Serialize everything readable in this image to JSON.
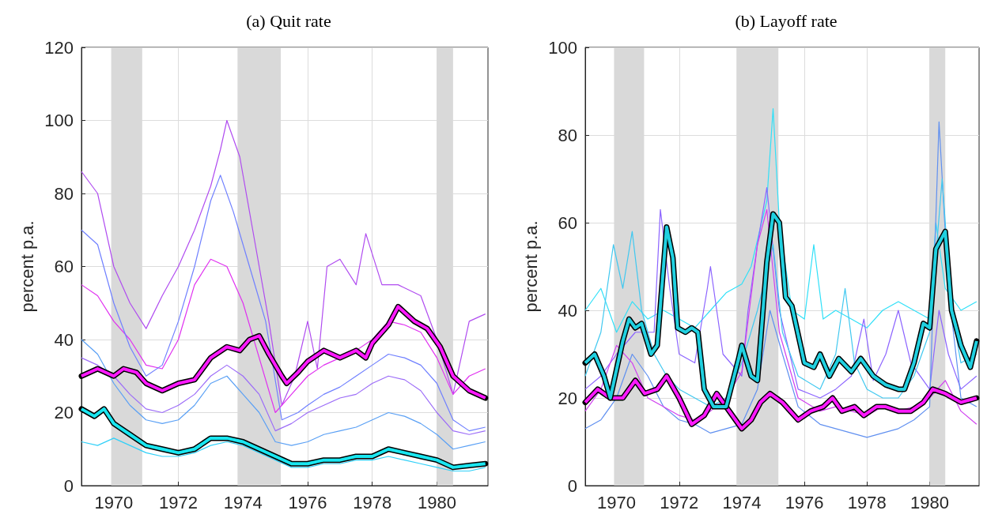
{
  "chart_data": [
    {
      "type": "line",
      "title": "(a) Quit rate",
      "ylabel": "percent p.a.",
      "xlim": [
        1969,
        1981.58
      ],
      "xticks": [
        1970,
        1972,
        1974,
        1976,
        1978,
        1980
      ],
      "ylim": [
        0,
        120
      ],
      "yticks": [
        0,
        20,
        40,
        60,
        80,
        100,
        120
      ],
      "grid": true,
      "marker": "none",
      "bands": [
        {
          "axis": "x",
          "from": 1969.92,
          "to": 1970.88,
          "color": "#d9d9d9"
        },
        {
          "axis": "x",
          "from": 1973.83,
          "to": 1975.17,
          "color": "#d9d9d9"
        },
        {
          "axis": "x",
          "from": 1980.0,
          "to": 1980.5,
          "color": "#d9d9d9"
        }
      ],
      "series": [
        {
          "color": "#b04cf0",
          "x": [
            1969,
            1969.5,
            1970,
            1970.5,
            1971,
            1971.5,
            1972,
            1972.5,
            1973,
            1973.3,
            1973.5,
            1973.9,
            1974.3,
            1974.8,
            1975.2,
            1975.6,
            1976,
            1976.3,
            1976.6,
            1977,
            1977.5,
            1977.8,
            1978.3,
            1978.8,
            1979.5,
            1980,
            1980.5,
            1981,
            1981.5
          ],
          "values": [
            86,
            80,
            60,
            50,
            43,
            52,
            60,
            70,
            82,
            92,
            100,
            90,
            70,
            45,
            22,
            30,
            45,
            32,
            60,
            62,
            55,
            69,
            55,
            55,
            52,
            40,
            25,
            45,
            47
          ]
        },
        {
          "color": "#e030f0",
          "x": [
            1969,
            1969.5,
            1970,
            1970.5,
            1971,
            1971.5,
            1972,
            1972.5,
            1973,
            1973.5,
            1974,
            1974.5,
            1975,
            1975.5,
            1976,
            1976.5,
            1977,
            1977.5,
            1978,
            1978.5,
            1979,
            1979.5,
            1980,
            1980.5,
            1981,
            1981.5
          ],
          "values": [
            55,
            52,
            45,
            40,
            33,
            32,
            40,
            55,
            62,
            60,
            50,
            35,
            20,
            25,
            30,
            33,
            35,
            37,
            40,
            45,
            44,
            42,
            35,
            25,
            30,
            32
          ]
        },
        {
          "color": "#7080ff",
          "x": [
            1969,
            1969.5,
            1970,
            1970.5,
            1971,
            1971.5,
            1972,
            1972.5,
            1973,
            1973.3,
            1973.7,
            1974.2,
            1974.7,
            1975.2,
            1975.7,
            1976,
            1976.5,
            1977,
            1977.5,
            1978,
            1978.5,
            1979,
            1979.5,
            1980,
            1980.5,
            1981,
            1981.5
          ],
          "values": [
            70,
            66,
            50,
            38,
            30,
            33,
            45,
            60,
            78,
            85,
            75,
            60,
            45,
            18,
            20,
            22,
            25,
            27,
            30,
            33,
            36,
            35,
            33,
            28,
            18,
            15,
            16
          ]
        },
        {
          "color": "#9c6cf8",
          "x": [
            1969,
            1969.5,
            1970,
            1970.5,
            1971,
            1971.5,
            1972,
            1972.5,
            1973,
            1973.5,
            1974,
            1974.5,
            1975,
            1975.5,
            1976,
            1976.5,
            1977,
            1977.5,
            1978,
            1978.5,
            1979,
            1979.5,
            1980,
            1980.5,
            1981,
            1981.5
          ],
          "values": [
            35,
            33,
            30,
            25,
            21,
            20,
            22,
            25,
            30,
            33,
            30,
            25,
            15,
            17,
            20,
            22,
            24,
            25,
            28,
            30,
            29,
            26,
            20,
            15,
            14,
            15
          ]
        },
        {
          "color": "#5aa0f5",
          "x": [
            1969,
            1969.5,
            1970,
            1970.5,
            1971,
            1971.5,
            1972,
            1972.5,
            1973,
            1973.5,
            1974,
            1974.5,
            1975,
            1975.5,
            1976,
            1976.5,
            1977,
            1977.5,
            1978,
            1978.5,
            1979,
            1979.5,
            1980,
            1980.5,
            1981,
            1981.5
          ],
          "values": [
            40,
            36,
            28,
            22,
            18,
            17,
            18,
            22,
            28,
            30,
            25,
            20,
            12,
            11,
            12,
            14,
            15,
            16,
            18,
            20,
            19,
            17,
            14,
            10,
            11,
            12
          ]
        },
        {
          "color": "#30d0f8",
          "x": [
            1969,
            1969.5,
            1970,
            1970.5,
            1971,
            1971.5,
            1972,
            1972.5,
            1973,
            1973.5,
            1974,
            1974.5,
            1975,
            1975.5,
            1976,
            1976.5,
            1977,
            1977.5,
            1978,
            1978.5,
            1979,
            1979.5,
            1980,
            1980.5,
            1981,
            1981.5
          ],
          "values": [
            12,
            11,
            13,
            11,
            9,
            8,
            8,
            9,
            11,
            12,
            11,
            9,
            7,
            5,
            5,
            6,
            6,
            7,
            7,
            8,
            7,
            6,
            5,
            4,
            4,
            5
          ]
        },
        {
          "color": "#ff19ff",
          "x": [
            1969,
            1969.5,
            1970,
            1970.3,
            1970.7,
            1971,
            1971.5,
            1972,
            1972.5,
            1973,
            1973.5,
            1973.9,
            1974.2,
            1974.5,
            1974.8,
            1975.2,
            1975.35,
            1975.7,
            1976,
            1976.5,
            1977,
            1977.5,
            1977.8,
            1978,
            1978.5,
            1978.8,
            1979.3,
            1979.7,
            1980.1,
            1980.5,
            1981,
            1981.5
          ],
          "values": [
            30,
            32,
            30,
            32,
            31,
            28,
            26,
            28,
            29,
            35,
            38,
            37,
            40,
            41,
            36,
            30,
            28,
            31,
            34,
            37,
            35,
            37,
            35,
            39,
            44,
            49,
            45,
            43,
            38,
            30,
            26,
            24
          ]
        },
        {
          "color": "#19e6f0",
          "x": [
            1969,
            1969.4,
            1969.7,
            1970,
            1970.5,
            1971,
            1971.5,
            1972,
            1972.5,
            1973,
            1973.5,
            1974,
            1974.5,
            1975,
            1975.5,
            1976,
            1976.5,
            1977,
            1977.5,
            1978,
            1978.5,
            1979,
            1979.5,
            1980,
            1980.5,
            1981,
            1981.5
          ],
          "values": [
            21,
            19,
            21,
            17,
            14,
            11,
            10,
            9,
            10,
            13,
            13,
            12,
            10,
            8,
            6,
            6,
            7,
            7,
            8,
            8,
            10,
            9,
            8,
            7,
            5,
            5.5,
            6
          ]
        }
      ]
    },
    {
      "type": "line",
      "title": "(b) Layoff rate",
      "ylabel": "percent p.a.",
      "xlim": [
        1969,
        1981.58
      ],
      "xticks": [
        1970,
        1972,
        1974,
        1976,
        1978,
        1980
      ],
      "ylim": [
        0,
        100
      ],
      "yticks": [
        0,
        20,
        40,
        60,
        80,
        100
      ],
      "grid": true,
      "marker": "none",
      "bands": [
        {
          "axis": "x",
          "from": 1969.92,
          "to": 1970.88,
          "color": "#d9d9d9"
        },
        {
          "axis": "x",
          "from": 1973.83,
          "to": 1975.17,
          "color": "#d9d9d9"
        },
        {
          "axis": "x",
          "from": 1980.0,
          "to": 1980.5,
          "color": "#d9d9d9"
        }
      ],
      "series": [
        {
          "color": "#30e0f8",
          "x": [
            1969,
            1969.5,
            1970,
            1970.5,
            1971,
            1971.5,
            1972,
            1972.5,
            1973,
            1973.5,
            1974,
            1974.3,
            1974.8,
            1975,
            1975.2,
            1975.6,
            1976,
            1976.3,
            1976.6,
            1977,
            1977.5,
            1978,
            1978.5,
            1979,
            1979.5,
            1980,
            1980.2,
            1980.5,
            1981,
            1981.5
          ],
          "values": [
            40,
            45,
            35,
            42,
            38,
            40,
            38,
            36,
            40,
            44,
            46,
            50,
            65,
            86,
            60,
            40,
            38,
            55,
            38,
            40,
            38,
            36,
            40,
            42,
            40,
            38,
            60,
            45,
            40,
            42
          ]
        },
        {
          "color": "#8c64ff",
          "x": [
            1969,
            1969.5,
            1970,
            1970.6,
            1971.2,
            1971.4,
            1971.7,
            1972,
            1972.5,
            1972.9,
            1973,
            1973.4,
            1974,
            1974.2,
            1974.5,
            1974.8,
            1975.2,
            1975.8,
            1976.5,
            1977,
            1977.5,
            1977.9,
            1978.2,
            1978.6,
            1979,
            1979.4,
            1980,
            1980.3,
            1980.6,
            1981,
            1981.5
          ],
          "values": [
            22,
            25,
            30,
            35,
            35,
            63,
            45,
            30,
            28,
            45,
            50,
            30,
            25,
            40,
            55,
            68,
            40,
            22,
            20,
            22,
            25,
            38,
            24,
            30,
            40,
            28,
            22,
            40,
            30,
            22,
            25
          ]
        },
        {
          "color": "#6090f0",
          "x": [
            1969,
            1969.5,
            1970,
            1970.5,
            1971,
            1971.5,
            1972,
            1972.5,
            1973,
            1973.5,
            1974,
            1974.5,
            1974.9,
            1975.3,
            1975.8,
            1976.5,
            1977,
            1977.5,
            1978,
            1978.5,
            1979,
            1979.5,
            1980,
            1980.3,
            1980.6,
            1981,
            1981.5
          ],
          "values": [
            13,
            15,
            20,
            30,
            25,
            18,
            15,
            14,
            12,
            13,
            14,
            22,
            40,
            30,
            18,
            14,
            13,
            12,
            11,
            12,
            13,
            15,
            18,
            83,
            45,
            20,
            18
          ]
        },
        {
          "color": "#40c8f0",
          "x": [
            1969,
            1969.5,
            1969.9,
            1970.2,
            1970.5,
            1970.8,
            1971.2,
            1971.6,
            1972,
            1972.5,
            1973,
            1973.5,
            1974,
            1974.5,
            1975,
            1975.3,
            1975.8,
            1976.5,
            1977,
            1977.3,
            1977.6,
            1978,
            1978.5,
            1979,
            1979.5,
            1980,
            1980.4,
            1980.7,
            1981,
            1981.5
          ],
          "values": [
            25,
            35,
            55,
            45,
            58,
            40,
            30,
            25,
            22,
            20,
            18,
            20,
            28,
            40,
            55,
            35,
            25,
            22,
            30,
            45,
            28,
            22,
            20,
            20,
            25,
            35,
            70,
            40,
            28,
            30
          ]
        },
        {
          "color": "#d040f0",
          "x": [
            1969,
            1969.5,
            1970,
            1970.5,
            1971,
            1971.5,
            1972,
            1972.5,
            1973,
            1973.5,
            1974,
            1974.5,
            1974.8,
            1975.2,
            1975.8,
            1976.5,
            1977,
            1977.5,
            1978,
            1978.5,
            1979,
            1979.5,
            1980,
            1980.5,
            1981,
            1981.5
          ],
          "values": [
            17,
            22,
            32,
            28,
            20,
            18,
            16,
            15,
            17,
            20,
            26,
            55,
            63,
            35,
            20,
            17,
            18,
            17,
            16,
            18,
            17,
            18,
            20,
            24,
            17,
            14
          ]
        },
        {
          "color": "#ff19ff",
          "x": [
            1969,
            1969.4,
            1969.8,
            1970.2,
            1970.6,
            1970.9,
            1971.3,
            1971.6,
            1972,
            1972.4,
            1972.8,
            1973.2,
            1973.6,
            1974,
            1974.3,
            1974.6,
            1974.9,
            1975.3,
            1975.8,
            1976.2,
            1976.6,
            1976.9,
            1977.2,
            1977.6,
            1977.9,
            1978.3,
            1978.6,
            1979,
            1979.4,
            1979.8,
            1980.1,
            1980.5,
            1981,
            1981.5
          ],
          "values": [
            19,
            22,
            20,
            20,
            24,
            21,
            22,
            25,
            20,
            14,
            16,
            21,
            17,
            13,
            15,
            19,
            21,
            19,
            15,
            17,
            18,
            20,
            17,
            18,
            16,
            18,
            18,
            17,
            17,
            19,
            22,
            21,
            19,
            20
          ]
        },
        {
          "color": "#20d0e0",
          "x": [
            1969,
            1969.3,
            1969.6,
            1969.8,
            1970.2,
            1970.4,
            1970.6,
            1970.8,
            1971.1,
            1971.3,
            1971.6,
            1971.8,
            1971.95,
            1972.2,
            1972.4,
            1972.6,
            1972.8,
            1973.1,
            1973.5,
            1973.9,
            1974,
            1974.3,
            1974.5,
            1974.8,
            1975,
            1975.2,
            1975.4,
            1975.6,
            1976,
            1976.3,
            1976.5,
            1976.8,
            1977.1,
            1977.5,
            1977.8,
            1978.2,
            1978.6,
            1979,
            1979.2,
            1979.5,
            1979.8,
            1980,
            1980.2,
            1980.5,
            1980.7,
            1981,
            1981.3,
            1981.5
          ],
          "values": [
            28,
            30,
            25,
            20,
            33,
            38,
            36,
            37,
            30,
            32,
            59,
            52,
            36,
            35,
            36,
            35,
            22,
            18,
            18,
            29,
            32,
            25,
            24,
            51,
            62,
            60,
            43,
            41,
            28,
            27,
            30,
            25,
            29,
            26,
            29,
            25,
            23,
            22,
            22,
            28,
            37,
            36,
            54,
            58,
            40,
            32,
            27,
            33
          ]
        }
      ]
    }
  ]
}
